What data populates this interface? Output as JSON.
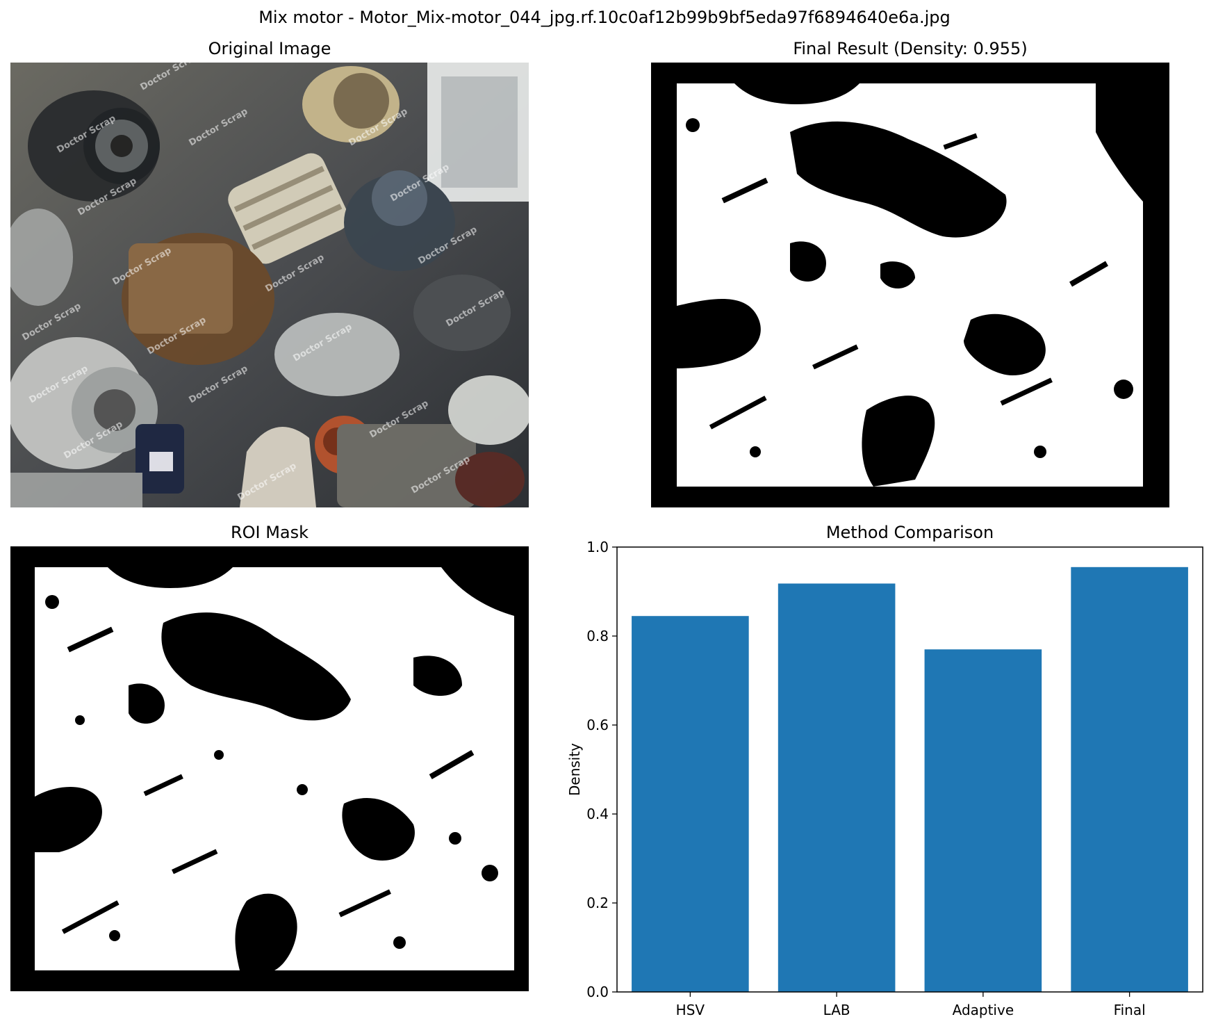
{
  "figure": {
    "suptitle": "Mix motor - Motor_Mix-motor_044_jpg.rf.10c0af12b99b9bf5eda97f6894640e6a.jpg"
  },
  "panels": {
    "original": {
      "title": "Original Image",
      "watermark": "Doctor Scrap"
    },
    "final": {
      "title": "Final Result (Density: 0.955)"
    },
    "roi": {
      "title": "ROI Mask"
    },
    "comparison": {
      "title": "Method Comparison"
    }
  },
  "chart_data": {
    "type": "bar",
    "title": "Method Comparison",
    "xlabel": "",
    "ylabel": "Density",
    "categories": [
      "HSV",
      "LAB",
      "Adaptive",
      "Final"
    ],
    "values": [
      0.845,
      0.918,
      0.77,
      0.955
    ],
    "ylim": [
      0,
      1.0
    ],
    "yticks": [
      "0.0",
      "0.2",
      "0.4",
      "0.6",
      "0.8",
      "1.0"
    ],
    "bar_color": "#1f77b4",
    "grid": false
  },
  "colors": {
    "mask_fg": "#ffffff",
    "mask_bg": "#000000",
    "bar": "#1f77b4"
  }
}
